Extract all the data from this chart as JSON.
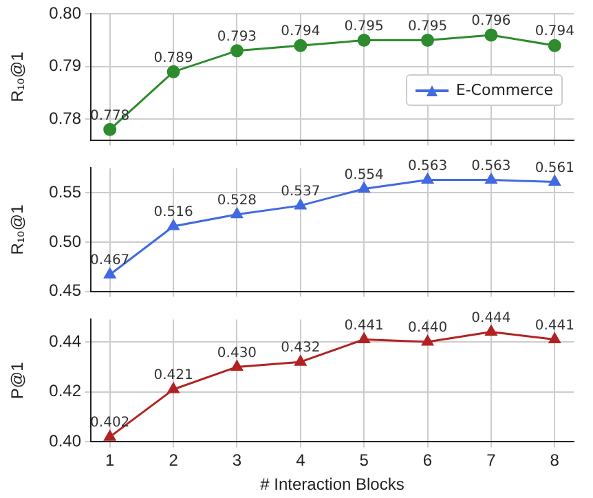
{
  "chart_data": [
    {
      "type": "line",
      "ylabel": "R₁₀@1",
      "x": [
        1,
        2,
        3,
        4,
        5,
        6,
        7,
        8
      ],
      "xlim": [
        0.7,
        8.3
      ],
      "xticks": [
        1,
        2,
        3,
        4,
        5,
        6,
        7,
        8
      ],
      "ylim": [
        0.776,
        0.8
      ],
      "yticks": [
        0.78,
        0.79,
        {
          "value": 0.8,
          "label": "0.80"
        }
      ],
      "tick_labels": "y",
      "grid": true,
      "marker": "circle",
      "line_style": "solid",
      "series": [
        {
          "color": "#2e8b2e",
          "values": [
            0.778,
            0.789,
            0.793,
            0.794,
            0.795,
            0.795,
            0.796,
            0.794
          ],
          "value_labels": [
            "0.778",
            "0.789",
            "0.793",
            "0.794",
            "0.795",
            "0.795",
            "0.796",
            "0.794"
          ]
        }
      ]
    },
    {
      "type": "line",
      "ylabel": "R₁₀@1",
      "x": [
        1,
        2,
        3,
        4,
        5,
        6,
        7,
        8
      ],
      "xlim": [
        0.7,
        8.3
      ],
      "xticks": [
        1,
        2,
        3,
        4,
        5,
        6,
        7,
        8
      ],
      "ylim": [
        0.45,
        0.575
      ],
      "yticks": [
        0.45,
        {
          "value": 0.5,
          "label": "0.50"
        },
        0.55
      ],
      "tick_labels": "y",
      "grid": true,
      "legend": "top right",
      "marker": "triangle",
      "line_style": "solid",
      "series": [
        {
          "name": "E-Commerce",
          "color": "#4169e1",
          "values": [
            0.467,
            0.516,
            0.528,
            0.537,
            0.554,
            0.563,
            0.563,
            0.561
          ],
          "value_labels": [
            "0.467",
            "0.516",
            "0.528",
            "0.537",
            "0.554",
            "0.563",
            "0.563",
            "0.561"
          ]
        }
      ]
    },
    {
      "type": "line",
      "ylabel": "P@1",
      "xlabel": "# Interaction Blocks",
      "x": [
        1,
        2,
        3,
        4,
        5,
        6,
        7,
        8
      ],
      "xlim": [
        0.7,
        8.3
      ],
      "xticks": [
        1,
        2,
        3,
        4,
        5,
        6,
        7,
        8
      ],
      "ylim": [
        0.4,
        0.449
      ],
      "yticks": [
        {
          "value": 0.4,
          "label": "0.40"
        },
        0.42,
        0.44
      ],
      "grid": true,
      "marker": "triangle",
      "line_style": "solid",
      "series": [
        {
          "color": "#b22222",
          "values": [
            0.402,
            0.421,
            0.43,
            0.432,
            0.441,
            0.44,
            0.444,
            0.441
          ],
          "value_labels": [
            "0.402",
            "0.421",
            "0.430",
            "0.432",
            "0.441",
            "0.440",
            "0.444",
            "0.441"
          ]
        }
      ]
    }
  ]
}
